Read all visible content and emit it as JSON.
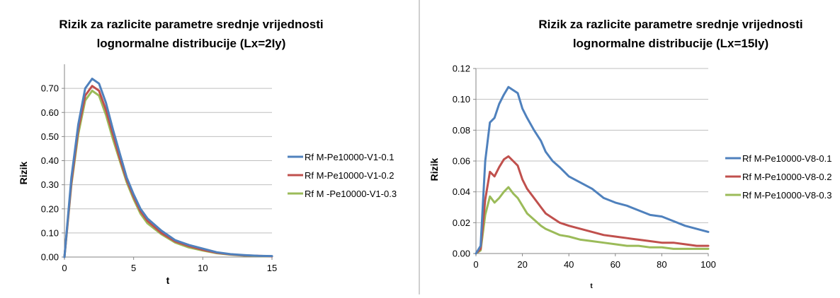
{
  "colors": {
    "series1": "#4F81BD",
    "series2": "#C0504D",
    "series3": "#9BBB59",
    "grid": "#bfbfbf",
    "axis": "#868686"
  },
  "chart_data": [
    {
      "type": "line",
      "title_lines": [
        "Rizik za razlicite parametre srednje vrijednosti",
        "lognormalne distribucije (Lx=2Iy)"
      ],
      "xlabel": "t",
      "ylabel": "Rizik",
      "xlim": [
        0,
        15
      ],
      "ylim": [
        0,
        0.8
      ],
      "x_ticks": [
        0,
        5,
        10,
        15
      ],
      "x_tick_labels": [
        "0",
        "5",
        "10",
        "15"
      ],
      "y_ticks": [
        0,
        0.1,
        0.2,
        0.3,
        0.4,
        0.5,
        0.6,
        0.7
      ],
      "y_tick_labels": [
        "0.00",
        "0.10",
        "0.20",
        "0.30",
        "0.40",
        "0.50",
        "0.60",
        "0.70"
      ],
      "grid": true,
      "legend_position": "right",
      "x": [
        0,
        0.5,
        1,
        1.5,
        2,
        2.5,
        3,
        3.5,
        4,
        4.5,
        5,
        5.5,
        6,
        7,
        8,
        9,
        10,
        11,
        12,
        13,
        14,
        15
      ],
      "series": [
        {
          "name": "Rf M-Pe10000-V1-0.1",
          "values": [
            0,
            0.33,
            0.55,
            0.7,
            0.74,
            0.72,
            0.64,
            0.53,
            0.43,
            0.33,
            0.26,
            0.2,
            0.16,
            0.11,
            0.07,
            0.05,
            0.035,
            0.02,
            0.012,
            0.008,
            0.005,
            0.004
          ]
        },
        {
          "name": "Rf M-Pe10000-V1-0.2",
          "values": [
            0,
            0.31,
            0.53,
            0.67,
            0.71,
            0.69,
            0.61,
            0.51,
            0.41,
            0.32,
            0.25,
            0.19,
            0.15,
            0.1,
            0.065,
            0.045,
            0.03,
            0.018,
            0.011,
            0.007,
            0.005,
            0.003
          ]
        },
        {
          "name": "Rf M -Pe10000-V1-0.3",
          "values": [
            0,
            0.3,
            0.51,
            0.65,
            0.69,
            0.67,
            0.59,
            0.49,
            0.4,
            0.31,
            0.24,
            0.18,
            0.14,
            0.095,
            0.06,
            0.04,
            0.027,
            0.016,
            0.01,
            0.006,
            0.004,
            0.003
          ]
        }
      ]
    },
    {
      "type": "line",
      "title_lines": [
        "Rizik za razlicite parametre srednje vrijednosti",
        "lognormalne distribucije (Lx=15Iy)"
      ],
      "xlabel": "t",
      "ylabel": "Rizik",
      "xlim": [
        0,
        100
      ],
      "ylim": [
        0,
        0.12
      ],
      "x_ticks": [
        0,
        20,
        40,
        60,
        80,
        100
      ],
      "x_tick_labels": [
        "0",
        "20",
        "40",
        "60",
        "80",
        "100"
      ],
      "y_ticks": [
        0,
        0.02,
        0.04,
        0.06,
        0.08,
        0.1,
        0.12
      ],
      "y_tick_labels": [
        "0.00",
        "0.02",
        "0.04",
        "0.06",
        "0.08",
        "0.10",
        "0.12"
      ],
      "grid": true,
      "legend_position": "right",
      "x": [
        0,
        2,
        4,
        6,
        8,
        10,
        12,
        14,
        16,
        18,
        20,
        22,
        25,
        28,
        30,
        33,
        36,
        40,
        45,
        50,
        55,
        60,
        65,
        70,
        75,
        80,
        85,
        90,
        95,
        100
      ],
      "series": [
        {
          "name": "Rf M-Pe10000-V8-0.1",
          "values": [
            0,
            0.005,
            0.06,
            0.085,
            0.088,
            0.097,
            0.103,
            0.108,
            0.106,
            0.104,
            0.094,
            0.088,
            0.08,
            0.073,
            0.066,
            0.06,
            0.056,
            0.05,
            0.046,
            0.042,
            0.036,
            0.033,
            0.031,
            0.028,
            0.025,
            0.024,
            0.021,
            0.018,
            0.016,
            0.014
          ]
        },
        {
          "name": "Rf M-Pe10000-V8-0.2",
          "values": [
            0,
            0.003,
            0.035,
            0.053,
            0.05,
            0.056,
            0.061,
            0.063,
            0.06,
            0.057,
            0.048,
            0.042,
            0.036,
            0.03,
            0.026,
            0.023,
            0.02,
            0.018,
            0.016,
            0.014,
            0.012,
            0.011,
            0.01,
            0.009,
            0.008,
            0.007,
            0.007,
            0.006,
            0.005,
            0.005
          ]
        },
        {
          "name": "Rf M-Pe10000-V8-0.3",
          "values": [
            0,
            0.002,
            0.025,
            0.037,
            0.033,
            0.036,
            0.04,
            0.043,
            0.039,
            0.036,
            0.031,
            0.026,
            0.022,
            0.018,
            0.016,
            0.014,
            0.012,
            0.011,
            0.009,
            0.008,
            0.007,
            0.006,
            0.005,
            0.005,
            0.004,
            0.004,
            0.003,
            0.003,
            0.003,
            0.003
          ]
        }
      ]
    }
  ]
}
